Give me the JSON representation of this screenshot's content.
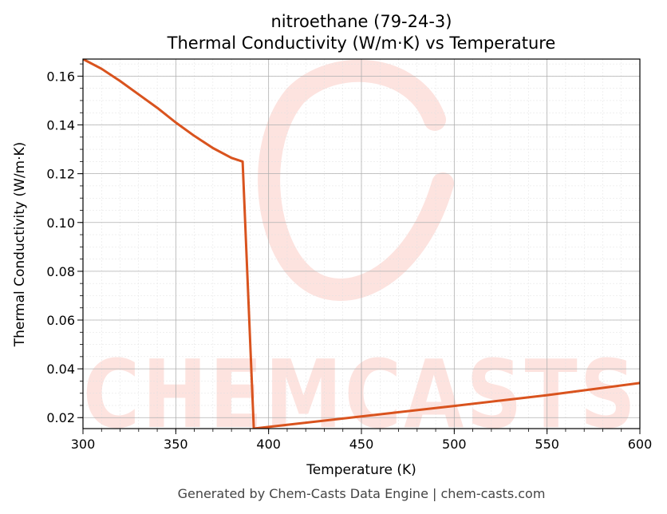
{
  "chart_data": {
    "type": "line",
    "title": "nitroethane (79-24-3)",
    "subtitle": "Thermal Conductivity (W/m·K) vs Temperature",
    "xlabel": "Temperature (K)",
    "ylabel": "Thermal Conductivity (W/m·K)",
    "xlim": [
      300,
      600
    ],
    "ylim": [
      0.0155,
      0.167
    ],
    "xticks": [
      300,
      350,
      400,
      450,
      500,
      550,
      600
    ],
    "yticks": [
      0.02,
      0.04,
      0.06,
      0.08,
      0.1,
      0.12,
      0.14,
      0.16
    ],
    "ytick_labels": [
      "0.02",
      "0.04",
      "0.06",
      "0.08",
      "0.10",
      "0.12",
      "0.14",
      "0.16"
    ],
    "grid": true,
    "series": [
      {
        "color": "#d9531e",
        "x": [
          300,
          310,
          320,
          330,
          340,
          350,
          360,
          370,
          380,
          386,
          392,
          400,
          450,
          500,
          550,
          600
        ],
        "y": [
          0.167,
          0.163,
          0.158,
          0.1525,
          0.147,
          0.141,
          0.1355,
          0.1305,
          0.1265,
          0.125,
          0.0155,
          0.0162,
          0.0205,
          0.0248,
          0.0292,
          0.0342
        ]
      }
    ],
    "footer": "Generated by Chem-Casts Data Engine | chem-casts.com",
    "watermark": "CHEMCASTS"
  },
  "colors": {
    "line": "#d9531e",
    "watermark": "#fde3df",
    "grid_major": "#b0b0b0",
    "grid_minor": "#e0e0e0"
  }
}
